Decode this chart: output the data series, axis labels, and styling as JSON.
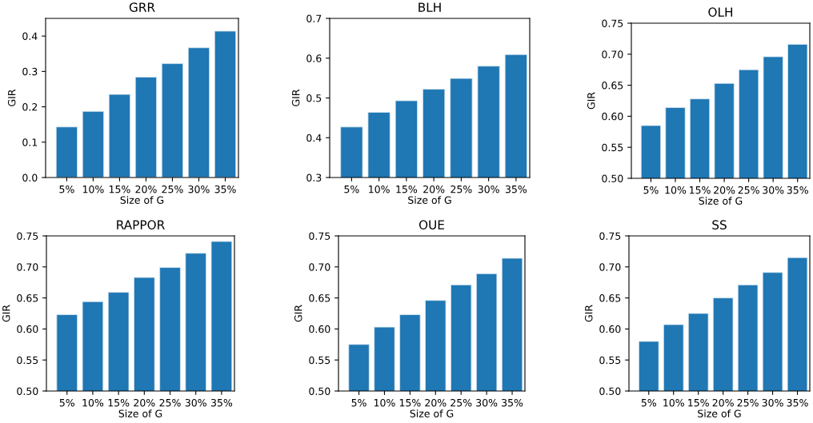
{
  "chart_data": [
    {
      "type": "bar",
      "title": "GRR",
      "xlabel": "Size of G",
      "ylabel": "GIR",
      "categories": [
        "5%",
        "10%",
        "15%",
        "20%",
        "25%",
        "30%",
        "35%"
      ],
      "values": [
        0.143,
        0.187,
        0.235,
        0.284,
        0.322,
        0.367,
        0.414
      ],
      "color": "#1f77b4",
      "ylim": [
        0,
        0.45
      ],
      "yticks": [
        {
          "value": 0,
          "label": "0.0"
        },
        0.1,
        0.2,
        0.3,
        0.4
      ],
      "grid": false
    },
    {
      "type": "bar",
      "title": "BLH",
      "xlabel": "Size of G",
      "ylabel": "GIR",
      "categories": [
        "5%",
        "10%",
        "15%",
        "20%",
        "25%",
        "30%",
        "35%"
      ],
      "values": [
        0.427,
        0.464,
        0.493,
        0.522,
        0.549,
        0.58,
        0.609
      ],
      "color": "#1f77b4",
      "ylim": [
        0.3,
        0.7
      ],
      "yticks": [
        0.3,
        0.4,
        0.5,
        0.6,
        0.7
      ],
      "grid": false
    },
    {
      "type": "bar",
      "title": "OLH",
      "xlabel": "Size of G",
      "ylabel": "GIR",
      "categories": [
        "5%",
        "10%",
        "15%",
        "20%",
        "25%",
        "30%",
        "35%"
      ],
      "values": [
        0.585,
        0.614,
        0.628,
        0.653,
        0.675,
        0.696,
        0.716
      ],
      "color": "#1f77b4",
      "ylim": [
        0.5,
        0.75
      ],
      "yticks": [
        {
          "value": 0.5,
          "label": "0.50"
        },
        0.55,
        {
          "value": 0.6,
          "label": "0.60"
        },
        0.65,
        {
          "value": 0.7,
          "label": "0.70"
        },
        0.75
      ],
      "grid": false
    },
    {
      "type": "bar",
      "title": "RAPPOR",
      "xlabel": "Size of G",
      "ylabel": "GIR",
      "categories": [
        "5%",
        "10%",
        "15%",
        "20%",
        "25%",
        "30%",
        "35%"
      ],
      "values": [
        0.623,
        0.644,
        0.659,
        0.683,
        0.699,
        0.722,
        0.741
      ],
      "color": "#1f77b4",
      "ylim": [
        0.5,
        0.75
      ],
      "yticks": [
        {
          "value": 0.5,
          "label": "0.50"
        },
        0.55,
        {
          "value": 0.6,
          "label": "0.60"
        },
        0.65,
        {
          "value": 0.7,
          "label": "0.70"
        },
        0.75
      ],
      "grid": false
    },
    {
      "type": "bar",
      "title": "OUE",
      "xlabel": "Size of G",
      "ylabel": "GIR",
      "categories": [
        "5%",
        "10%",
        "15%",
        "20%",
        "25%",
        "30%",
        "35%"
      ],
      "values": [
        0.575,
        0.603,
        0.623,
        0.646,
        0.671,
        0.689,
        0.714
      ],
      "color": "#1f77b4",
      "ylim": [
        0.5,
        0.75
      ],
      "yticks": [
        {
          "value": 0.5,
          "label": "0.50"
        },
        0.55,
        {
          "value": 0.6,
          "label": "0.60"
        },
        0.65,
        {
          "value": 0.7,
          "label": "0.70"
        },
        0.75
      ],
      "grid": false
    },
    {
      "type": "bar",
      "title": "SS",
      "xlabel": "Size of G",
      "ylabel": "GIR",
      "categories": [
        "5%",
        "10%",
        "15%",
        "20%",
        "25%",
        "30%",
        "35%"
      ],
      "values": [
        0.58,
        0.607,
        0.625,
        0.65,
        0.671,
        0.691,
        0.715
      ],
      "color": "#1f77b4",
      "ylim": [
        0.5,
        0.75
      ],
      "yticks": [
        {
          "value": 0.5,
          "label": "0.50"
        },
        0.55,
        {
          "value": 0.6,
          "label": "0.60"
        },
        0.65,
        {
          "value": 0.7,
          "label": "0.70"
        },
        0.75
      ],
      "grid": false
    }
  ]
}
